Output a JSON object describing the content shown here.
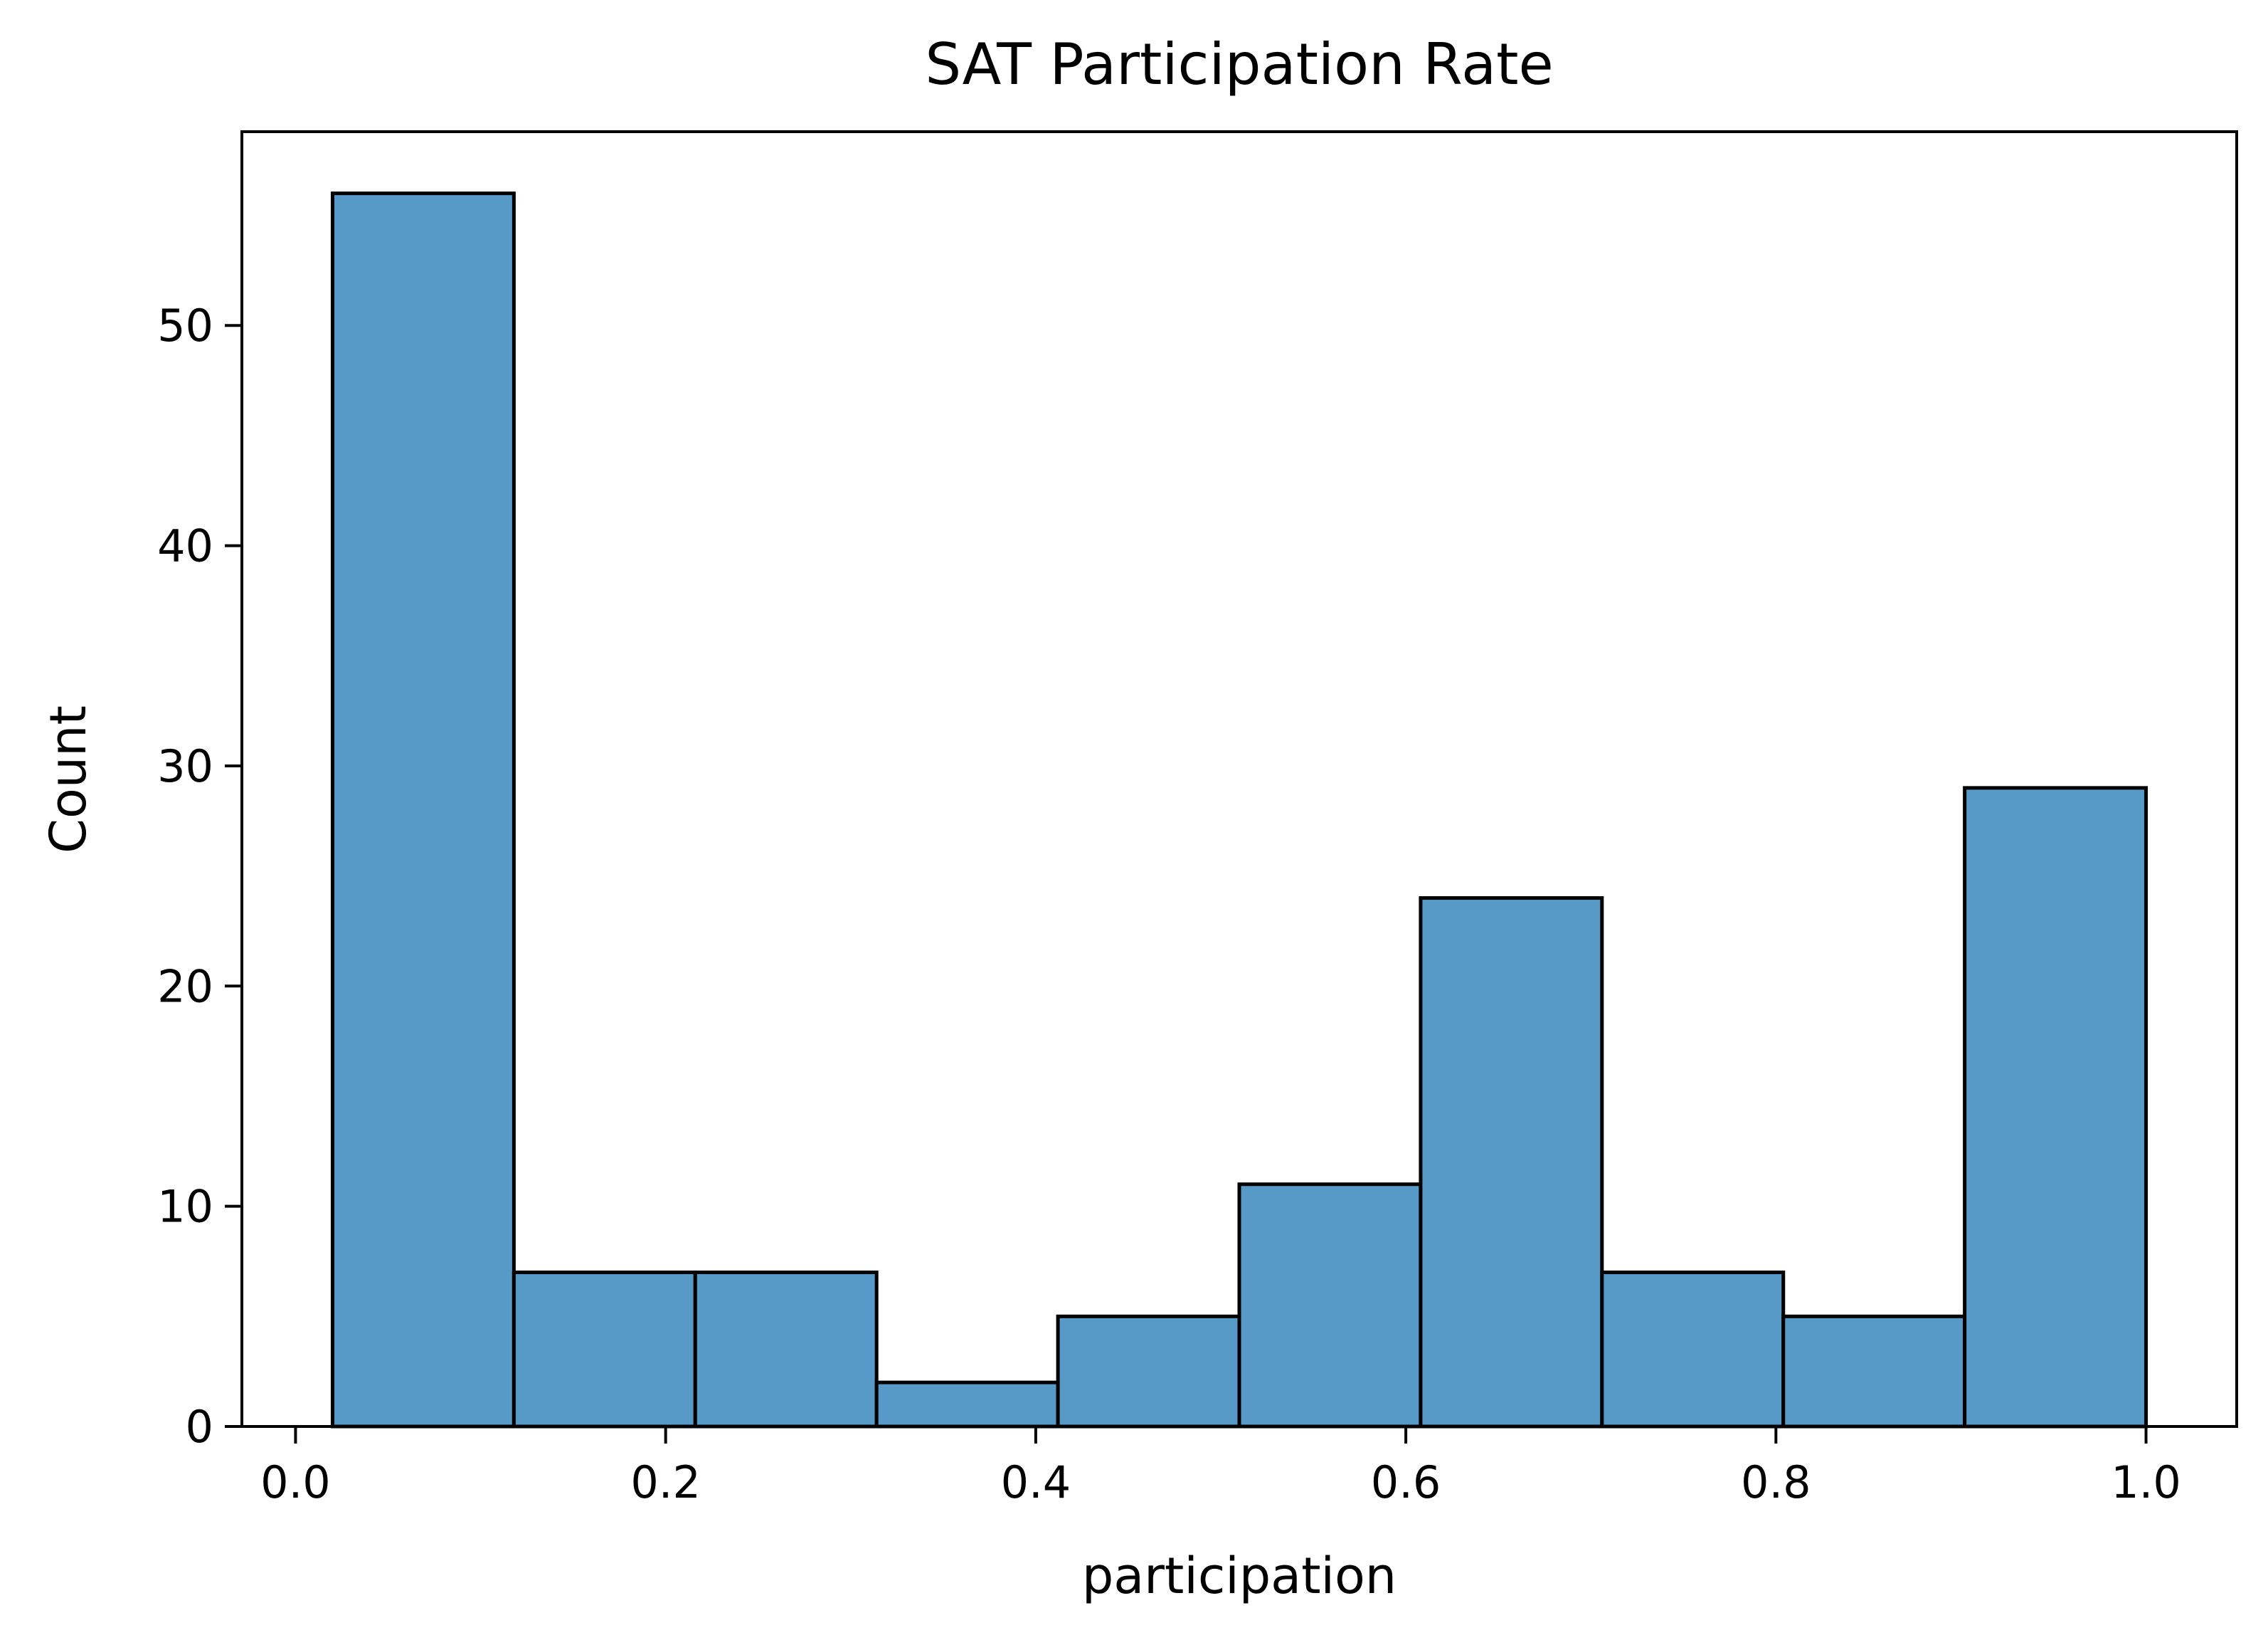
{
  "chart_data": {
    "type": "bar",
    "title": "SAT Participation Rate",
    "xlabel": "participation",
    "ylabel": "Count",
    "bin_edges": [
      0.02,
      0.118,
      0.216,
      0.314,
      0.412,
      0.51,
      0.608,
      0.706,
      0.804,
      0.902,
      1.0
    ],
    "values": [
      56,
      7,
      7,
      2,
      5,
      11,
      24,
      7,
      5,
      29
    ],
    "xlim": [
      -0.029,
      1.049
    ],
    "ylim": [
      0,
      58.8
    ],
    "xticks": [
      0.0,
      0.2,
      0.4,
      0.6,
      0.8,
      1.0
    ],
    "xtick_labels": [
      "0.0",
      "0.2",
      "0.4",
      "0.6",
      "0.8",
      "1.0"
    ],
    "yticks": [
      0,
      10,
      20,
      30,
      40,
      50
    ],
    "ytick_labels": [
      "0",
      "10",
      "20",
      "30",
      "40",
      "50"
    ],
    "bar_color": "#5799c7",
    "edge_color": "#000000",
    "grid": false,
    "legend": "none"
  }
}
